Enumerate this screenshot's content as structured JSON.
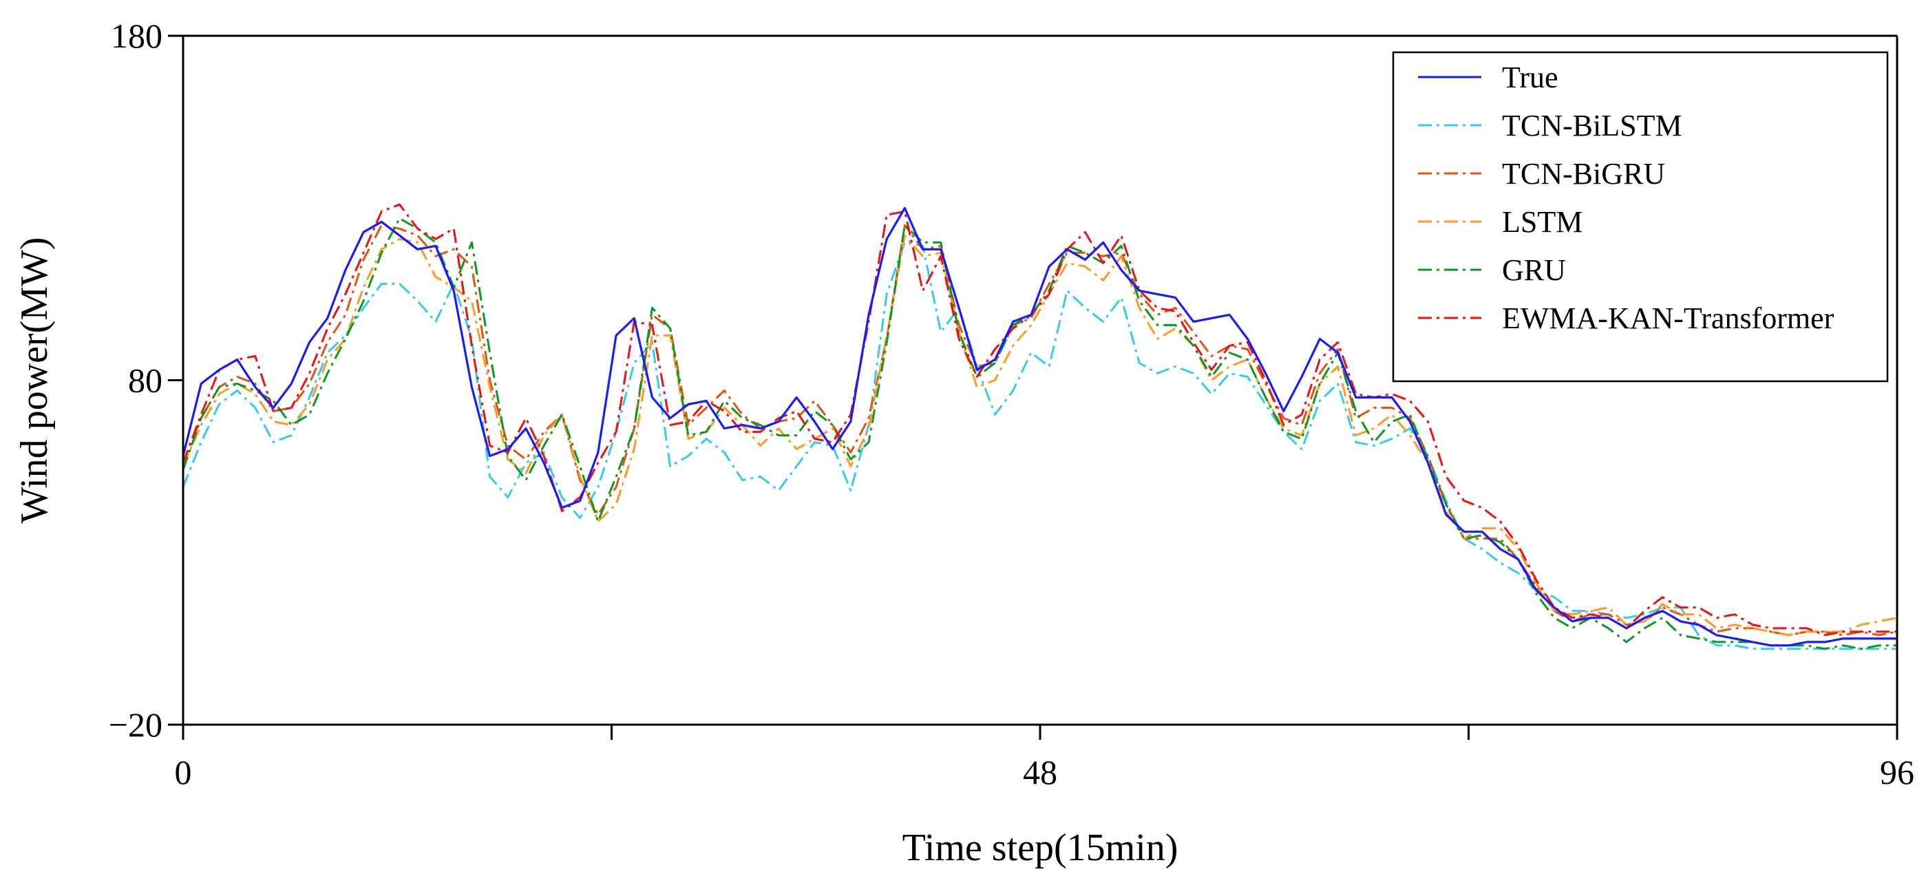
{
  "chart_data": {
    "type": "line",
    "title": "",
    "xlabel": "Time step(15min)",
    "ylabel": "Wind power(MW)",
    "xlim": [
      0,
      96
    ],
    "ylim": [
      -20,
      180
    ],
    "xticks": [
      0,
      24,
      48,
      72,
      96
    ],
    "xtick_labels": [
      "0",
      "",
      "48",
      "",
      "96"
    ],
    "yticks": [
      -20,
      80,
      180
    ],
    "ytick_labels": [
      "−20",
      "80",
      "180"
    ],
    "grid": false,
    "legend_position": "top-right",
    "series": [
      {
        "name": "True",
        "color": "#1a1aff",
        "style": "solid",
        "values": [
          58,
          79,
          83,
          86,
          78,
          72,
          79,
          91,
          98,
          112,
          123,
          126,
          122,
          118,
          119,
          106,
          78,
          58,
          60,
          66,
          56,
          43,
          45,
          59,
          93,
          98,
          75,
          69,
          73,
          74,
          66,
          67,
          66,
          68,
          75,
          68,
          60,
          68,
          99,
          121,
          130,
          118,
          118,
          101,
          83,
          86,
          97,
          99,
          113,
          118,
          115,
          120,
          112,
          106,
          105,
          104,
          97,
          98,
          99,
          92,
          82,
          71,
          81,
          92,
          88,
          75,
          75,
          75,
          68,
          56,
          41,
          36,
          36,
          31,
          28,
          19,
          14,
          10,
          11,
          11,
          8,
          11,
          13,
          10,
          9,
          6,
          5,
          4,
          3,
          3,
          4,
          4,
          5,
          5,
          5,
          5
        ]
      },
      {
        "name": "TCN-BiLSTM",
        "color": "#33ccee",
        "style": "dashdot",
        "values": [
          49,
          62,
          73,
          77,
          72,
          62,
          64,
          75,
          88,
          93,
          101,
          108,
          108,
          103,
          97,
          108,
          92,
          52,
          46,
          56,
          59,
          46,
          40,
          49,
          65,
          85,
          91,
          55,
          58,
          63,
          59,
          51,
          52,
          48,
          55,
          62,
          61,
          48,
          67,
          105,
          120,
          119,
          94,
          101,
          84,
          70,
          77,
          88,
          84,
          106,
          101,
          97,
          104,
          85,
          82,
          84,
          82,
          76,
          82,
          81,
          73,
          65,
          60,
          74,
          79,
          62,
          61,
          63,
          66,
          58,
          45,
          34,
          31,
          27,
          24,
          19,
          17,
          13,
          13,
          12,
          11,
          12,
          14,
          14,
          6,
          3,
          3,
          2,
          2,
          2,
          2,
          2,
          2,
          2,
          2,
          2
        ]
      },
      {
        "name": "TCN-BiGRU",
        "color": "#dd5511",
        "style": "dashdot",
        "values": [
          56,
          69,
          78,
          81,
          79,
          71,
          72,
          79,
          91,
          99,
          115,
          125,
          124,
          122,
          116,
          118,
          113,
          80,
          61,
          57,
          65,
          70,
          51,
          41,
          49,
          66,
          99,
          95,
          67,
          72,
          77,
          70,
          66,
          68,
          69,
          74,
          67,
          59,
          69,
          92,
          125,
          118,
          119,
          96,
          84,
          85,
          96,
          98,
          108,
          117,
          117,
          116,
          117,
          105,
          99,
          101,
          94,
          87,
          90,
          89,
          79,
          69,
          67,
          82,
          89,
          69,
          72,
          72,
          69,
          58,
          44,
          34,
          34,
          34,
          28,
          20,
          13,
          10,
          12,
          12,
          9,
          10,
          14,
          12,
          9,
          7,
          8,
          8,
          7,
          6,
          7,
          7,
          6,
          7,
          6,
          7
        ]
      },
      {
        "name": "LSTM",
        "color": "#ff9922",
        "style": "dashdot",
        "values": [
          55,
          67,
          76,
          79,
          76,
          68,
          67,
          73,
          86,
          92,
          107,
          118,
          121,
          120,
          110,
          107,
          103,
          78,
          57,
          53,
          64,
          70,
          52,
          39,
          44,
          60,
          93,
          93,
          63,
          65,
          72,
          67,
          61,
          66,
          60,
          63,
          66,
          55,
          66,
          93,
          122,
          116,
          117,
          94,
          78,
          80,
          90,
          96,
          105,
          114,
          113,
          109,
          116,
          101,
          92,
          95,
          90,
          80,
          84,
          86,
          75,
          66,
          64,
          79,
          84,
          64,
          66,
          70,
          64,
          56,
          42,
          34,
          37,
          37,
          31,
          21,
          13,
          12,
          13,
          14,
          9,
          10,
          15,
          12,
          12,
          8,
          9,
          8,
          7,
          6,
          7,
          7,
          7,
          9,
          10,
          11
        ]
      },
      {
        "name": "GRU",
        "color": "#0a9922",
        "style": "dashdot",
        "values": [
          54,
          69,
          78,
          79,
          77,
          74,
          67,
          70,
          82,
          92,
          103,
          117,
          127,
          124,
          120,
          107,
          120,
          88,
          58,
          51,
          61,
          70,
          55,
          39,
          52,
          66,
          101,
          95,
          64,
          65,
          74,
          69,
          67,
          64,
          64,
          71,
          67,
          57,
          62,
          91,
          125,
          120,
          120,
          94,
          81,
          85,
          96,
          99,
          106,
          119,
          117,
          114,
          119,
          103,
          96,
          96,
          90,
          81,
          88,
          86,
          75,
          65,
          63,
          79,
          88,
          71,
          62,
          68,
          70,
          57,
          44,
          34,
          35,
          33,
          28,
          18,
          11,
          8,
          11,
          8,
          4,
          8,
          11,
          6,
          5,
          4,
          4,
          4,
          3,
          3,
          3,
          2,
          3,
          2,
          3,
          3
        ]
      },
      {
        "name": "EWMA-KAN-Transformer",
        "color": "#ee1111",
        "style": "dashdot",
        "values": [
          56,
          70,
          83,
          86,
          87,
          71,
          72,
          82,
          95,
          105,
          117,
          129,
          131,
          124,
          121,
          124,
          90,
          61,
          59,
          69,
          58,
          42,
          46,
          56,
          65,
          97,
          96,
          67,
          68,
          74,
          71,
          65,
          65,
          69,
          71,
          63,
          62,
          70,
          97,
          128,
          129,
          106,
          116,
          92,
          81,
          89,
          95,
          99,
          105,
          118,
          123,
          114,
          122,
          106,
          101,
          100,
          91,
          83,
          90,
          91,
          80,
          67,
          70,
          86,
          91,
          76,
          75,
          76,
          74,
          68,
          52,
          45,
          43,
          39,
          32,
          22,
          14,
          11,
          12,
          11,
          8,
          13,
          17,
          14,
          14,
          11,
          12,
          9,
          8,
          8,
          8,
          6,
          7,
          7,
          7,
          7
        ]
      }
    ]
  }
}
